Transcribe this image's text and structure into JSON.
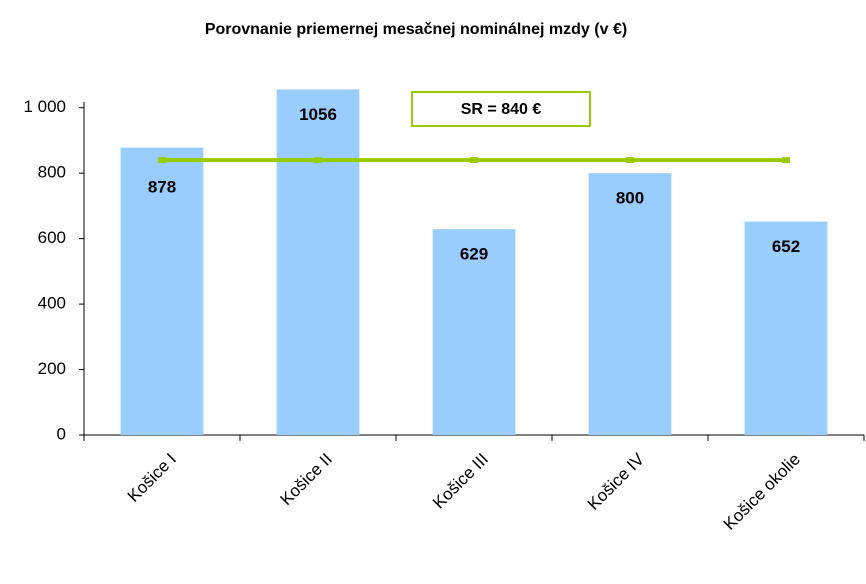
{
  "chart_data": {
    "type": "bar",
    "title": "Porovnanie priemernej mesačnej nominálnej mzdy (v €)",
    "categories": [
      "Košice I",
      "Košice II",
      "Košice III",
      "Košice IV",
      "Košice okolie"
    ],
    "series": [
      {
        "type": "bar",
        "color": "#99ccff",
        "values": [
          878,
          1056,
          629,
          800,
          652
        ]
      },
      {
        "type": "line",
        "color": "#99cc00",
        "values": [
          840,
          840,
          840,
          840,
          840
        ]
      }
    ],
    "annotation": "SR = 840 €",
    "ylim": [
      0,
      1100
    ],
    "yticks": [
      0,
      200,
      400,
      600,
      800,
      {
        "value": 1000,
        "label": "1 000"
      }
    ]
  }
}
